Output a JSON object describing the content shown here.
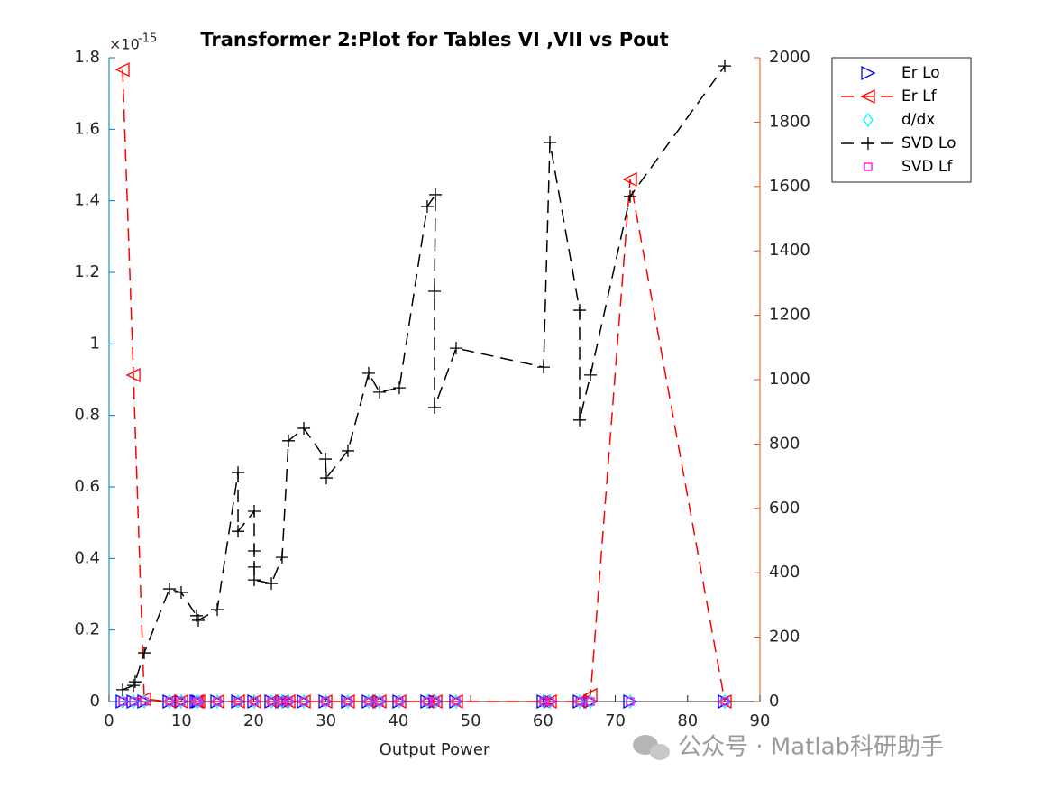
{
  "chart_data": {
    "type": "line",
    "title": "Transformer 2:Plot for Tables VI ,VII vs Pout",
    "xlabel": "Output Power",
    "y_exponent": {
      "base": "×10",
      "power": "-15"
    },
    "watermark": "公众号 · Matlab科研助手",
    "xlim": [
      0,
      90
    ],
    "xticks": [
      0,
      10,
      20,
      30,
      40,
      50,
      60,
      70,
      80,
      90
    ],
    "ylim": [
      0,
      1.8
    ],
    "yticks": [
      0,
      0.2,
      0.4,
      0.6,
      0.8,
      1,
      1.2,
      1.4,
      1.6,
      1.8
    ],
    "y2lim": [
      0,
      2000
    ],
    "y2ticks": [
      0,
      200,
      400,
      600,
      800,
      1000,
      1200,
      1400,
      1600,
      1800,
      2000
    ],
    "y_color": "#0072bd",
    "y2_color": "#d95319",
    "legend": "northeast outside",
    "x": [
      1.87,
      3.37,
      4.86,
      8.35,
      9.97,
      12.09,
      12.34,
      14.96,
      17.83,
      20.07,
      22.44,
      23.93,
      24.81,
      26.93,
      29.92,
      33.03,
      35.9,
      37.4,
      40.14,
      44.0,
      45.13,
      47.99,
      60.08,
      60.96,
      65.07,
      66.57,
      72.05,
      85.14
    ],
    "series": [
      {
        "name": "Er Lo",
        "color": "#0000ff",
        "marker": ">",
        "line_style": "none",
        "values": [
          0,
          0,
          0,
          0,
          0,
          0,
          0,
          0,
          0,
          0,
          0,
          0,
          0,
          0,
          0,
          0,
          0,
          0,
          0,
          0,
          0,
          0,
          0,
          0,
          0,
          0,
          0,
          0
        ]
      },
      {
        "name": "Er Lf",
        "color": "#ff0000",
        "marker": "<",
        "line_style": "--",
        "axis": "y2",
        "values": [
          1963,
          1014,
          8,
          0,
          0,
          0,
          0,
          0,
          0,
          0,
          0,
          0,
          0,
          0,
          0,
          0,
          0,
          0,
          0,
          0,
          0,
          0,
          0,
          0,
          0,
          20,
          1622,
          0
        ]
      },
      {
        "name": "d/dx",
        "color": "#00ffff",
        "marker": "d",
        "line_style": "none",
        "values": [
          0,
          0,
          0,
          0,
          0,
          0,
          0,
          0,
          0,
          0,
          0,
          0,
          0,
          0,
          0,
          0,
          0,
          0,
          0,
          0,
          0,
          0,
          0,
          0,
          0,
          0,
          0,
          0
        ]
      },
      {
        "name": "SVD Lo",
        "color": "#000000",
        "marker": "+",
        "line_style": "--",
        "x": [
          1.87,
          3.37,
          3.6,
          4.86,
          8.35,
          9.97,
          12.09,
          12.34,
          14.96,
          17.83,
          17.83,
          20.07,
          20.07,
          20.07,
          20.07,
          22.44,
          23.93,
          24.81,
          26.93,
          29.92,
          30.04,
          33.03,
          35.9,
          37.4,
          40.14,
          44.0,
          45.13,
          45.0,
          45.0,
          47.99,
          60.08,
          60.96,
          65.07,
          65.07,
          66.57,
          72.05,
          85.14
        ],
        "values": [
          0.033,
          0.045,
          0.055,
          0.136,
          0.315,
          0.305,
          0.24,
          0.227,
          0.257,
          0.64,
          0.476,
          0.532,
          0.421,
          0.376,
          0.34,
          0.33,
          0.403,
          0.729,
          0.764,
          0.678,
          0.625,
          0.701,
          0.918,
          0.865,
          0.877,
          1.384,
          1.417,
          1.147,
          0.822,
          0.988,
          0.935,
          1.563,
          1.094,
          0.787,
          0.913,
          1.412,
          1.777
        ]
      },
      {
        "name": "SVD Lf",
        "color": "#ff00ff",
        "marker": "s",
        "line_style": "none",
        "axis": "y2",
        "values": [
          0,
          0,
          0,
          0,
          0,
          0,
          0,
          0,
          0,
          0,
          0,
          0,
          0,
          0,
          0,
          0,
          0,
          0,
          0,
          0,
          0,
          0,
          0,
          0,
          0,
          0,
          0,
          0
        ]
      }
    ]
  }
}
